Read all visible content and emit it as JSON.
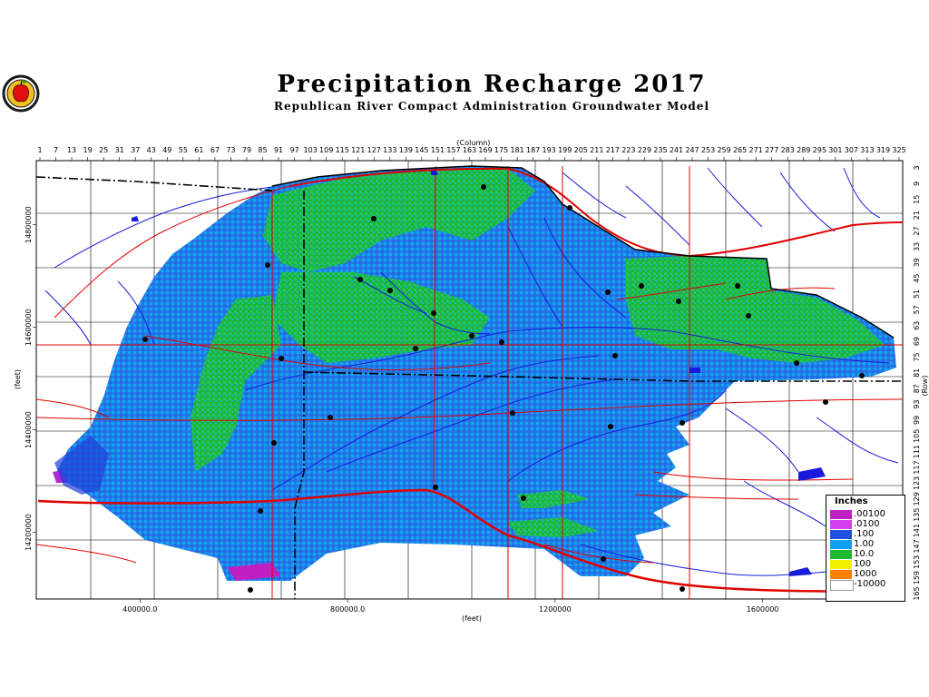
{
  "title": "Precipitation Recharge 2017",
  "subtitle": "Republican River Compact Administration Groundwater Model",
  "logo": {
    "icon": "apple-seal-icon"
  },
  "axes": {
    "top_title": "(Column)",
    "bottom_title": "(feet)",
    "left_title": "(feet)",
    "right_title": "(Row)",
    "columns": [
      "1",
      "7",
      "13",
      "19",
      "25",
      "31",
      "37",
      "43",
      "49",
      "55",
      "61",
      "67",
      "73",
      "79",
      "85",
      "91",
      "97",
      "103",
      "109",
      "115",
      "121",
      "127",
      "133",
      "139",
      "145",
      "151",
      "157",
      "163",
      "169",
      "175",
      "181",
      "187",
      "193",
      "199",
      "205",
      "211",
      "217",
      "223",
      "229",
      "235",
      "241",
      "247",
      "253",
      "259",
      "265",
      "271",
      "277",
      "283",
      "289",
      "295",
      "301",
      "307",
      "313",
      "319",
      "325"
    ],
    "rows": [
      "3",
      "9",
      "15",
      "21",
      "27",
      "33",
      "39",
      "45",
      "51",
      "57",
      "63",
      "69",
      "75",
      "81",
      "87",
      "93",
      "99",
      "105",
      "111",
      "117",
      "123",
      "129",
      "135",
      "141",
      "147",
      "153",
      "159",
      "165"
    ],
    "x_ticks": [
      {
        "label": "400000.0",
        "value": 400000
      },
      {
        "label": "800000.0",
        "value": 800000
      },
      {
        "label": "1200000",
        "value": 1200000
      },
      {
        "label": "1600000",
        "value": 1600000
      }
    ],
    "y_ticks": [
      {
        "label": "14800000",
        "value": 14800000
      },
      {
        "label": "14600000",
        "value": 14600000
      },
      {
        "label": "14400000",
        "value": 14400000
      },
      {
        "label": "14200000",
        "value": 14200000
      }
    ]
  },
  "legend": {
    "title": "Inches",
    "items": [
      {
        "label": ".00100",
        "color": "#c020c0"
      },
      {
        "label": ".0100",
        "color": "#d040f0"
      },
      {
        "label": ".100",
        "color": "#2050e0"
      },
      {
        "label": "1.00",
        "color": "#10a0f0"
      },
      {
        "label": "10.0",
        "color": "#20b830"
      },
      {
        "label": "100",
        "color": "#f0f000"
      },
      {
        "label": "1000",
        "color": "#ff8000"
      },
      {
        "label": "-10000",
        "color": "#ffffff"
      }
    ]
  },
  "colors": {
    "roads": "#e00000",
    "rivers": "#1a1adc",
    "state_line": "#000000",
    "recharge_low": "#2060e0",
    "recharge_mid": "#10b0f0",
    "recharge_high": "#18b83a"
  }
}
